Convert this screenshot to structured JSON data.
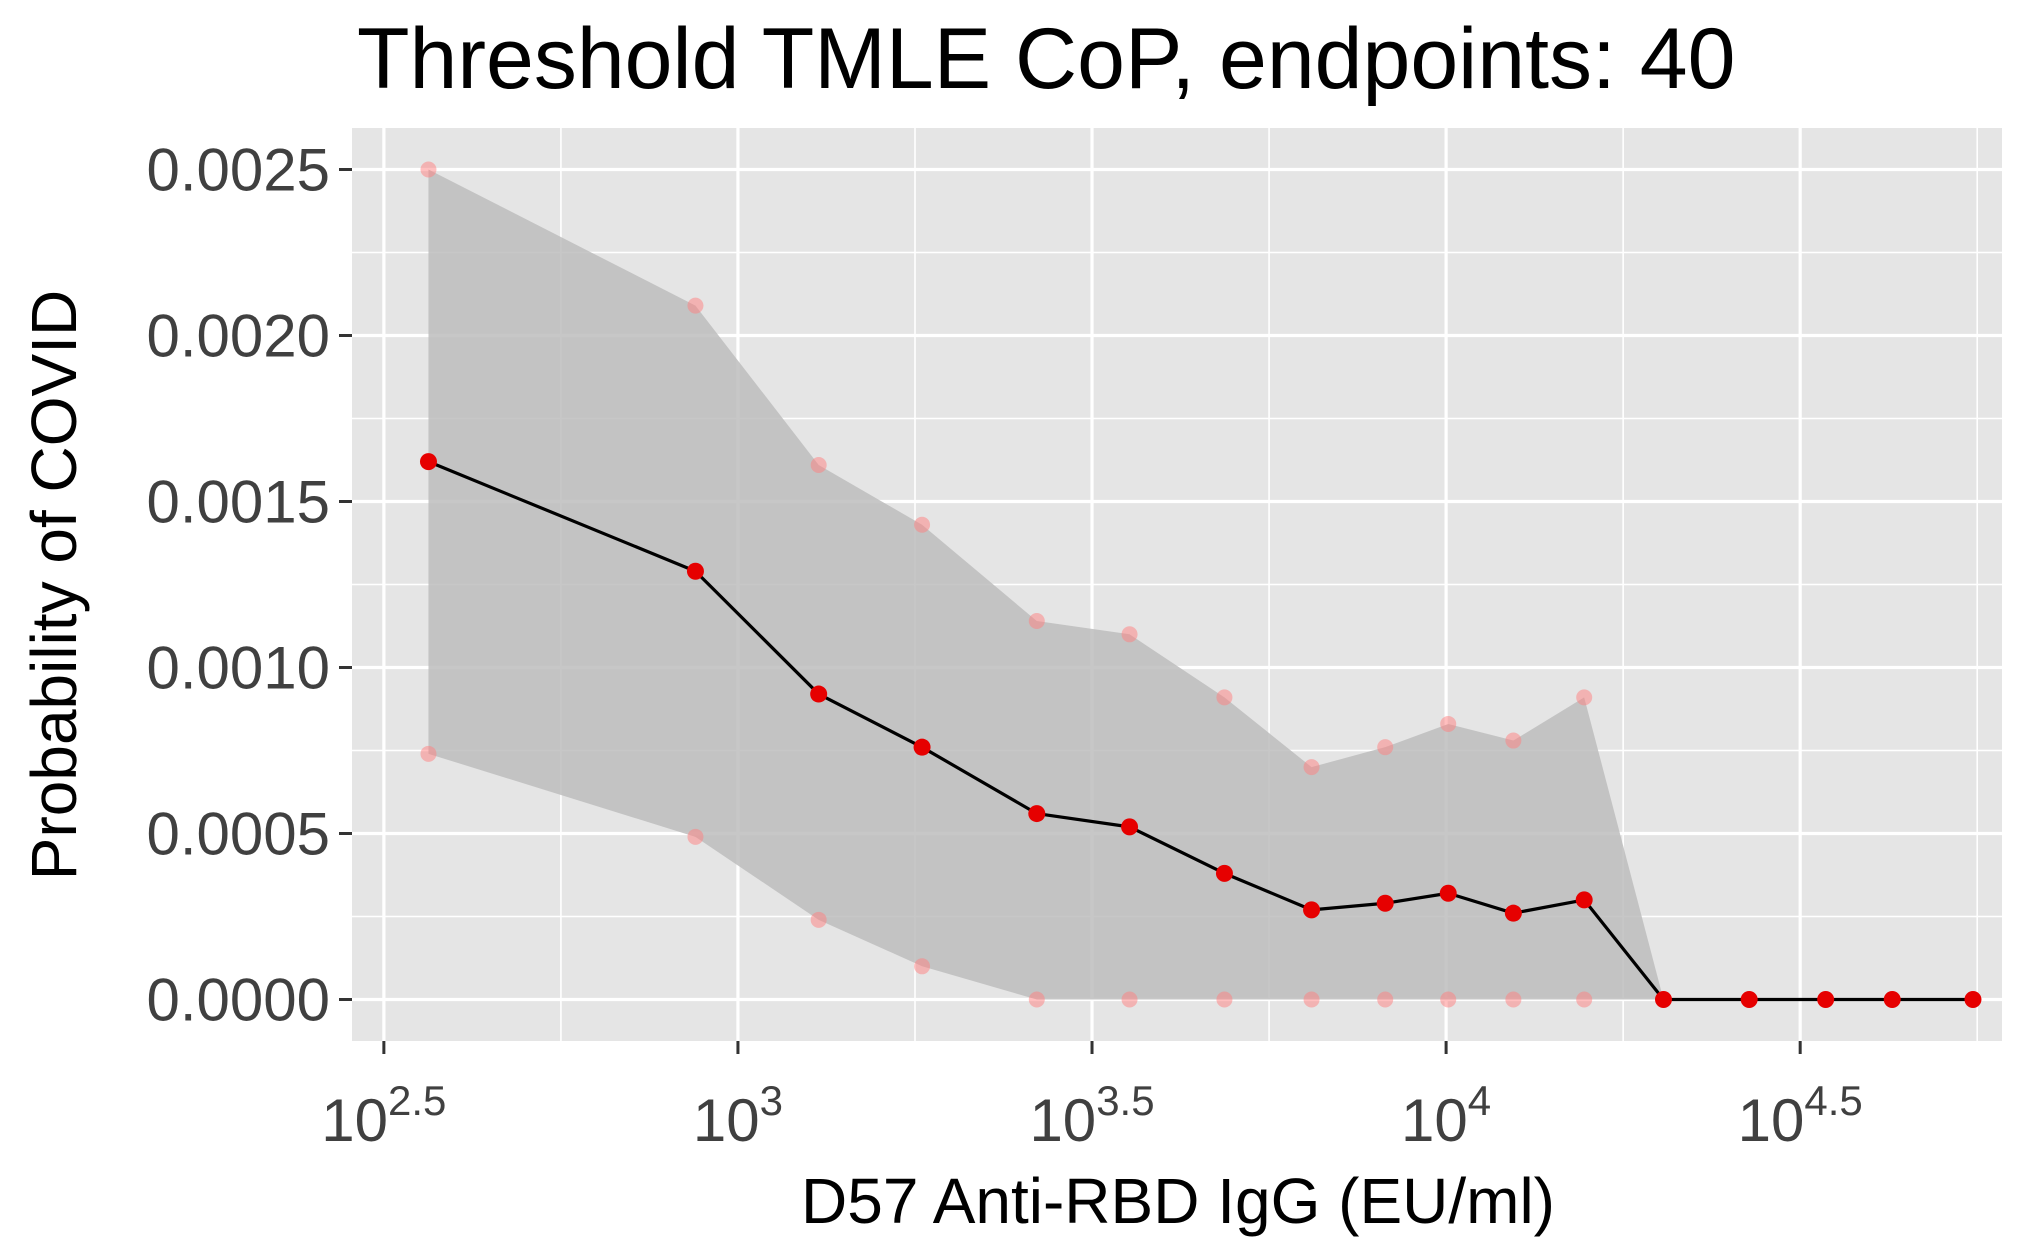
{
  "chart_data": {
    "type": "line",
    "title": "Threshold TMLE CoP, endpoints: 40",
    "xlabel": "D57 Anti-RBD IgG (EU/ml)",
    "ylabel": "Probability of COVID",
    "x_scale": "log10",
    "xlim_log10": [
      2.455,
      4.785
    ],
    "ylim": [
      -0.000125,
      0.002625
    ],
    "x_ticks": [
      {
        "base": "10",
        "exp": "2.5",
        "value_log10": 2.5
      },
      {
        "base": "10",
        "exp": "3",
        "value_log10": 3.0
      },
      {
        "base": "10",
        "exp": "3.5",
        "value_log10": 3.5
      },
      {
        "base": "10",
        "exp": "4",
        "value_log10": 4.0
      },
      {
        "base": "10",
        "exp": "4.5",
        "value_log10": 4.5
      }
    ],
    "y_ticks": [
      "0.0000",
      "0.0005",
      "0.0010",
      "0.0015",
      "0.0020",
      "0.0025"
    ],
    "y_tick_values": [
      0,
      0.0005,
      0.001,
      0.0015,
      0.002,
      0.0025
    ],
    "grid": true,
    "colors": {
      "panel": "#e5e5e5",
      "grid": "#ffffff",
      "ribbon": "#bdbdbd",
      "line": "#000000",
      "point": "#e60000",
      "ci_point": "#ff8080"
    },
    "x_log10": [
      2.563,
      2.94,
      3.114,
      3.26,
      3.422,
      3.553,
      3.687,
      3.81,
      3.914,
      4.003,
      4.095,
      4.195,
      4.307,
      4.428,
      4.536,
      4.63,
      4.744
    ],
    "estimate": [
      0.00162,
      0.00129,
      0.00092,
      0.00076,
      0.00056,
      0.00052,
      0.00038,
      0.00027,
      0.00029,
      0.00032,
      0.00026,
      0.0003,
      0,
      0,
      0,
      0,
      0
    ],
    "lower": [
      0.00074,
      0.00049,
      0.00024,
      0.0001,
      0,
      0,
      0,
      0,
      0,
      0,
      0,
      0,
      0,
      0,
      0,
      0,
      0
    ],
    "upper": [
      0.0025,
      0.00209,
      0.00161,
      0.00143,
      0.00114,
      0.0011,
      0.00091,
      0.0007,
      0.00076,
      0.00083,
      0.00078,
      0.00091,
      0,
      0,
      0,
      0,
      0
    ],
    "ci_points_count": 12
  }
}
